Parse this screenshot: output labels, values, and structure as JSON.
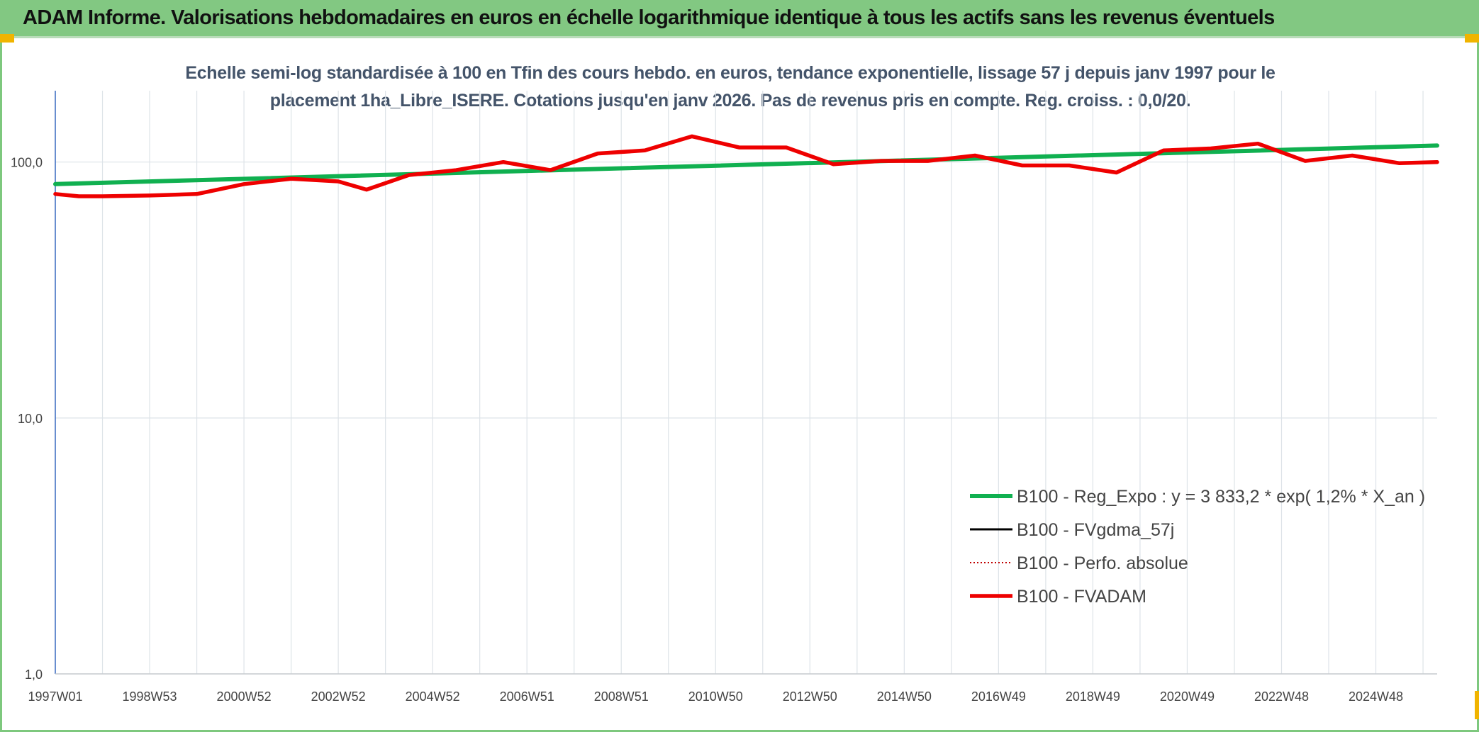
{
  "header": {
    "title": "ADAM Informe. Valorisations hebdomadaires en euros en échelle logarithmique identique à tous les actifs sans les revenus éventuels"
  },
  "colors": {
    "header_bg": "#82c882",
    "accent": "#f0b400",
    "trend_green": "#10b050",
    "fvadam_red": "#ee0000",
    "fvgdma_black": "#000000",
    "perfo_red": "#c00000"
  },
  "chart_data": {
    "type": "line",
    "title_line1": "Echelle semi-log standardisée à 100 en Tfin des cours hebdo. en euros, tendance exponentielle, lissage 57 j depuis janv 1997 pour le",
    "title_line2": "placement 1ha_Libre_ISERE. Cotations jusqu'en janv 2026. Pas de revenus pris en compte. Reg. croiss. : 0,0/20.",
    "yscale": "log",
    "ylim": [
      1,
      190
    ],
    "yticks": [
      {
        "value": 1,
        "label": "1,0"
      },
      {
        "value": 10,
        "label": "10,0"
      },
      {
        "value": 100,
        "label": "100,0"
      }
    ],
    "xlim": [
      1997.0,
      2026.3
    ],
    "xticks": [
      {
        "x": 1997.0,
        "label": "1997W01"
      },
      {
        "x": 1999.0,
        "label": "1998W53"
      },
      {
        "x": 2001.0,
        "label": "2000W52"
      },
      {
        "x": 2003.0,
        "label": "2002W52"
      },
      {
        "x": 2005.0,
        "label": "2004W52"
      },
      {
        "x": 2007.0,
        "label": "2006W51"
      },
      {
        "x": 2009.0,
        "label": "2008W51"
      },
      {
        "x": 2011.0,
        "label": "2010W50"
      },
      {
        "x": 2013.0,
        "label": "2012W50"
      },
      {
        "x": 2015.0,
        "label": "2014W50"
      },
      {
        "x": 2017.0,
        "label": "2016W49"
      },
      {
        "x": 2019.0,
        "label": "2018W49"
      },
      {
        "x": 2021.0,
        "label": "2020W49"
      },
      {
        "x": 2023.0,
        "label": "2022W48"
      },
      {
        "x": 2025.0,
        "label": "2024W48"
      }
    ],
    "legend_position": "bottom-right",
    "series": [
      {
        "name": "B100 - Reg_Expo : y = 3 833,2 * exp( 1,2% *  X_an )",
        "style": "solid-green",
        "x": [
          1997.0,
          2026.3
        ],
        "values": [
          82,
          116
        ]
      },
      {
        "name": "B100 - FVgdma_57j",
        "style": "solid-black",
        "x": [
          1997.0,
          1997.5,
          1998.0,
          1999.0,
          2000.0,
          2001.0,
          2002.0,
          2003.0,
          2003.6,
          2004.5,
          2005.5,
          2006.5,
          2007.5,
          2008.5,
          2009.5,
          2010.5,
          2011.5,
          2012.5,
          2013.5,
          2014.5,
          2015.5,
          2016.5,
          2017.5,
          2018.5,
          2019.5,
          2020.5,
          2021.5,
          2022.5,
          2023.5,
          2024.5,
          2025.5,
          2026.3
        ],
        "values": [
          75,
          73.5,
          73.5,
          74,
          75,
          82,
          86,
          84,
          78,
          89,
          93,
          100,
          93,
          108,
          111,
          126,
          114,
          114,
          98,
          101,
          101,
          106,
          97,
          97,
          91,
          111,
          113,
          118,
          101,
          106,
          99,
          100
        ]
      },
      {
        "name": "B100 - Perfo. absolue",
        "style": "dotted-red",
        "x": [],
        "values": []
      },
      {
        "name": "B100 - FVADAM",
        "style": "solid-red",
        "x": [
          1997.0,
          1997.5,
          1998.0,
          1999.0,
          2000.0,
          2001.0,
          2002.0,
          2003.0,
          2003.6,
          2004.5,
          2005.5,
          2006.5,
          2007.5,
          2008.5,
          2009.5,
          2010.5,
          2011.5,
          2012.5,
          2013.5,
          2014.5,
          2015.5,
          2016.5,
          2017.5,
          2018.5,
          2019.5,
          2020.5,
          2021.5,
          2022.5,
          2023.5,
          2024.5,
          2025.5,
          2026.3
        ],
        "values": [
          75,
          73.5,
          73.5,
          74,
          75,
          82,
          86,
          84,
          78,
          89,
          93,
          100,
          93,
          108,
          111,
          126,
          114,
          114,
          98,
          101,
          101,
          106,
          97,
          97,
          91,
          111,
          113,
          118,
          101,
          106,
          99,
          100
        ]
      }
    ]
  }
}
